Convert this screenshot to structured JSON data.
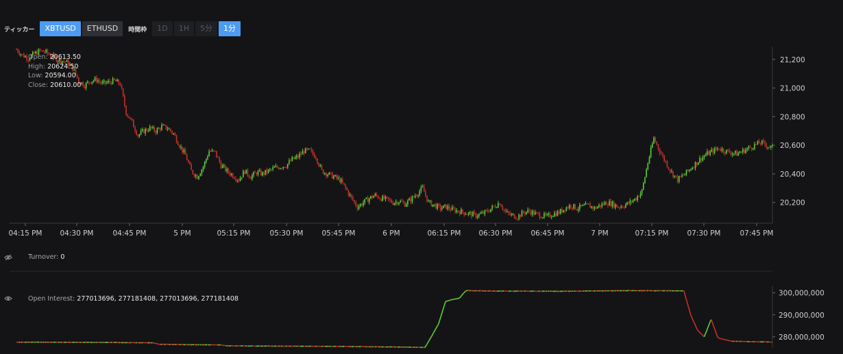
{
  "toolbar": {
    "ticker_label": "ティッカー",
    "tickers": [
      {
        "label": "XBTUSD",
        "active": true
      },
      {
        "label": "ETHUSD",
        "active": false
      }
    ],
    "interval_label": "時間枠",
    "intervals": [
      {
        "label": "1D",
        "active": false
      },
      {
        "label": "1H",
        "active": false
      },
      {
        "label": "5分",
        "active": false
      },
      {
        "label": "1分",
        "active": true
      }
    ]
  },
  "ohlc_legend": {
    "open_label": "Open:",
    "open": "20613.50",
    "high_label": "High:",
    "high": "20624.50",
    "low_label": "Low:",
    "low": "20594.00",
    "close_label": "Close:",
    "close": "20610.00"
  },
  "turnover": {
    "label": "Turnover:",
    "value": "0"
  },
  "open_interest": {
    "label": "Open Interest:",
    "value": "277013696, 277181408, 277013696, 277181408"
  },
  "colors": {
    "background": "#141416",
    "up": "#5ed134",
    "down": "#c9302c",
    "axis_text": "#d0d0d0",
    "accent": "#4d9cf3"
  },
  "chart_data": [
    {
      "type": "candlestick",
      "title": "",
      "x_tick_labels": [
        "04:15 PM",
        "04:30 PM",
        "04:45 PM",
        "5 PM",
        "05:15 PM",
        "05:30 PM",
        "05:45 PM",
        "6 PM",
        "06:15 PM",
        "06:30 PM",
        "06:45 PM",
        "7 PM",
        "07:15 PM",
        "07:30 PM",
        "07:45 PM"
      ],
      "y_tick_labels": [
        "21,200",
        "21,000",
        "20,800",
        "20,600",
        "20,400",
        "20,200"
      ],
      "y_ticks": [
        21200,
        21000,
        20800,
        20600,
        20400,
        20200
      ],
      "ylim": [
        20055,
        21290
      ],
      "x_range_minutes": [
        0,
        222
      ],
      "grid": false,
      "close_path": [
        [
          0,
          21270
        ],
        [
          2,
          21230
        ],
        [
          4,
          21210
        ],
        [
          6,
          21240
        ],
        [
          8,
          21260
        ],
        [
          10,
          21250
        ],
        [
          12,
          21220
        ],
        [
          14,
          21200
        ],
        [
          17,
          21180
        ],
        [
          19,
          21140
        ],
        [
          21,
          21050
        ],
        [
          23,
          21020
        ],
        [
          25,
          21050
        ],
        [
          27,
          21060
        ],
        [
          29,
          21030
        ],
        [
          31,
          21040
        ],
        [
          33,
          21050
        ],
        [
          35,
          21030
        ],
        [
          37,
          20830
        ],
        [
          39,
          20760
        ],
        [
          41,
          20670
        ],
        [
          43,
          20700
        ],
        [
          45,
          20720
        ],
        [
          47,
          20700
        ],
        [
          49,
          20730
        ],
        [
          51,
          20720
        ],
        [
          53,
          20680
        ],
        [
          55,
          20600
        ],
        [
          57,
          20530
        ],
        [
          59,
          20420
        ],
        [
          61,
          20380
        ],
        [
          63,
          20450
        ],
        [
          65,
          20560
        ],
        [
          67,
          20550
        ],
        [
          69,
          20460
        ],
        [
          71,
          20420
        ],
        [
          73,
          20390
        ],
        [
          75,
          20360
        ],
        [
          77,
          20420
        ],
        [
          79,
          20380
        ],
        [
          81,
          20410
        ],
        [
          83,
          20400
        ],
        [
          85,
          20420
        ],
        [
          87,
          20440
        ],
        [
          89,
          20450
        ],
        [
          91,
          20460
        ],
        [
          93,
          20500
        ],
        [
          95,
          20520
        ],
        [
          97,
          20560
        ],
        [
          99,
          20560
        ],
        [
          101,
          20520
        ],
        [
          103,
          20420
        ],
        [
          105,
          20400
        ],
        [
          107,
          20380
        ],
        [
          109,
          20360
        ],
        [
          111,
          20300
        ],
        [
          113,
          20230
        ],
        [
          115,
          20170
        ],
        [
          117,
          20200
        ],
        [
          119,
          20230
        ],
        [
          121,
          20250
        ],
        [
          123,
          20230
        ],
        [
          125,
          20220
        ],
        [
          127,
          20200
        ],
        [
          129,
          20210
        ],
        [
          131,
          20190
        ],
        [
          133,
          20220
        ],
        [
          135,
          20260
        ],
        [
          137,
          20300
        ],
        [
          139,
          20200
        ],
        [
          141,
          20180
        ],
        [
          143,
          20160
        ],
        [
          145,
          20170
        ],
        [
          147,
          20150
        ],
        [
          149,
          20140
        ],
        [
          151,
          20130
        ],
        [
          153,
          20120
        ],
        [
          155,
          20110
        ],
        [
          157,
          20120
        ],
        [
          159,
          20140
        ],
        [
          161,
          20170
        ],
        [
          163,
          20200
        ],
        [
          165,
          20130
        ],
        [
          167,
          20110
        ],
        [
          169,
          20100
        ],
        [
          171,
          20130
        ],
        [
          173,
          20140
        ],
        [
          175,
          20120
        ],
        [
          177,
          20110
        ],
        [
          179,
          20100
        ],
        [
          181,
          20120
        ],
        [
          183,
          20130
        ],
        [
          185,
          20160
        ],
        [
          187,
          20180
        ],
        [
          189,
          20160
        ],
        [
          191,
          20170
        ],
        [
          193,
          20180
        ],
        [
          195,
          20160
        ],
        [
          197,
          20180
        ],
        [
          199,
          20200
        ],
        [
          201,
          20190
        ],
        [
          203,
          20170
        ],
        [
          205,
          20180
        ],
        [
          207,
          20200
        ],
        [
          209,
          20230
        ],
        [
          211,
          20280
        ],
        [
          213,
          20480
        ],
        [
          215,
          20650
        ],
        [
          217,
          20560
        ],
        [
          219,
          20480
        ],
        [
          221,
          20410
        ],
        [
          223,
          20360
        ],
        [
          225,
          20390
        ],
        [
          227,
          20430
        ],
        [
          229,
          20470
        ],
        [
          231,
          20510
        ],
        [
          233,
          20540
        ],
        [
          235,
          20560
        ],
        [
          237,
          20580
        ],
        [
          239,
          20560
        ],
        [
          241,
          20550
        ],
        [
          243,
          20540
        ],
        [
          245,
          20560
        ],
        [
          247,
          20580
        ],
        [
          249,
          20600
        ],
        [
          251,
          20620
        ],
        [
          253,
          20600
        ],
        [
          255,
          20580
        ]
      ]
    },
    {
      "type": "line",
      "title": "",
      "series_label": "Turnover",
      "values_constant": 0
    },
    {
      "type": "step-line",
      "title": "",
      "y_tick_labels": [
        "300,000,000",
        "290,000,000",
        "280,000,000"
      ],
      "y_ticks": [
        300000000,
        290000000,
        280000000
      ],
      "ylim": [
        275000000,
        303000000
      ],
      "points": [
        [
          0,
          277600000
        ],
        [
          20,
          277500000
        ],
        [
          40,
          277300000
        ],
        [
          42,
          276600000
        ],
        [
          60,
          276300000
        ],
        [
          62,
          275900000
        ],
        [
          90,
          275700000
        ],
        [
          110,
          275400000
        ],
        [
          120,
          275200000
        ],
        [
          122,
          280500000
        ],
        [
          124,
          286000000
        ],
        [
          126,
          296000000
        ],
        [
          128,
          297000000
        ],
        [
          130,
          297500000
        ],
        [
          132,
          301000000
        ],
        [
          140,
          300800000
        ],
        [
          160,
          300700000
        ],
        [
          180,
          301000000
        ],
        [
          196,
          300900000
        ],
        [
          198,
          290000000
        ],
        [
          200,
          283000000
        ],
        [
          202,
          280000000
        ],
        [
          204,
          288000000
        ],
        [
          206,
          279500000
        ],
        [
          210,
          278000000
        ],
        [
          222,
          277600000
        ]
      ]
    }
  ]
}
